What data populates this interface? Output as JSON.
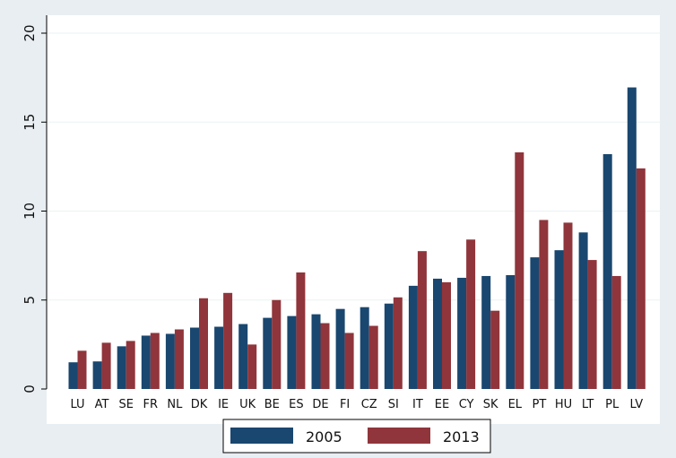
{
  "chart_data": {
    "type": "bar",
    "categories": [
      "LU",
      "AT",
      "SE",
      "FR",
      "NL",
      "DK",
      "IE",
      "UK",
      "BE",
      "ES",
      "DE",
      "FI",
      "CZ",
      "SI",
      "IT",
      "EE",
      "CY",
      "SK",
      "EL",
      "PT",
      "HU",
      "LT",
      "PL",
      "LV"
    ],
    "series": [
      {
        "name": "2005",
        "color": "#1a476f",
        "values": [
          1.5,
          1.55,
          2.4,
          3.0,
          3.1,
          3.45,
          3.5,
          3.65,
          4.0,
          4.1,
          4.2,
          4.5,
          4.6,
          4.8,
          5.8,
          6.2,
          6.25,
          6.35,
          6.4,
          7.4,
          7.8,
          8.8,
          13.2,
          16.95
        ]
      },
      {
        "name": "2013",
        "color": "#90353b",
        "values": [
          2.15,
          2.6,
          2.7,
          3.15,
          3.35,
          5.1,
          5.4,
          2.5,
          5.0,
          6.55,
          3.7,
          3.15,
          3.55,
          5.15,
          7.75,
          6.0,
          8.4,
          4.4,
          13.3,
          9.5,
          9.35,
          7.25,
          6.35,
          12.4
        ]
      }
    ],
    "yticks": [
      "0",
      "5",
      "10",
      "15",
      "20"
    ],
    "ylim": [
      0,
      20
    ],
    "grid": true,
    "legend_position": "bottom"
  }
}
